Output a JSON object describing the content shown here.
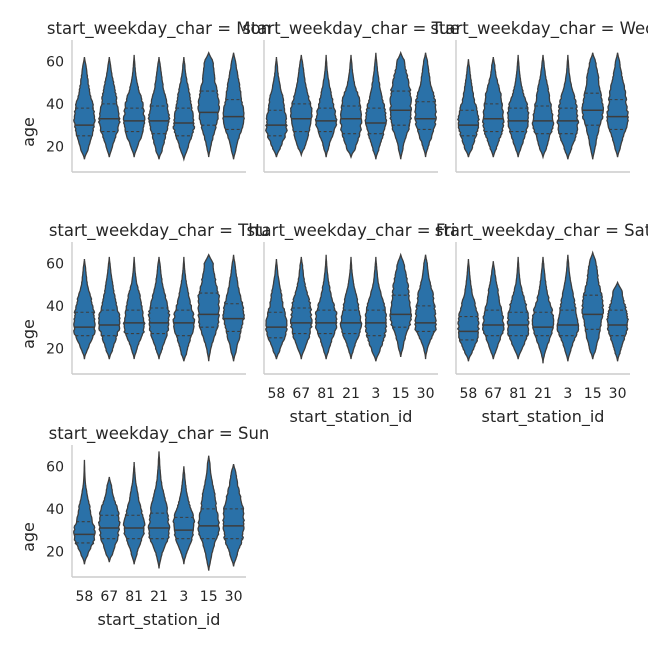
{
  "chart_data": {
    "type": "violin",
    "facet_variable": "start_weekday_char",
    "facet_title_prefix": "start_weekday_char = ",
    "xlabel": "start_station_id",
    "ylabel": "age",
    "categories": [
      "58",
      "67",
      "81",
      "21",
      "3",
      "15",
      "30"
    ],
    "yticks": [
      20,
      40,
      60
    ],
    "ylim": [
      8,
      70
    ],
    "inner": "quartile",
    "color": "#2a71a8",
    "edge_color": "#3d3d3d",
    "panels": [
      {
        "facet": "Mon",
        "quartiles": [
          [
            25,
            30,
            38
          ],
          [
            27,
            33,
            40
          ],
          [
            27,
            32,
            38
          ],
          [
            26,
            32,
            39
          ],
          [
            25,
            31,
            38
          ],
          [
            30,
            36,
            46
          ],
          [
            28,
            34,
            42
          ]
        ],
        "range": [
          [
            14,
            62
          ],
          [
            15,
            62
          ],
          [
            15,
            63
          ],
          [
            14,
            62
          ],
          [
            14,
            62
          ],
          [
            15,
            64
          ],
          [
            14,
            64
          ]
        ]
      },
      {
        "facet": "Tue",
        "quartiles": [
          [
            25,
            30,
            37
          ],
          [
            27,
            33,
            40
          ],
          [
            27,
            32,
            38
          ],
          [
            26,
            33,
            39
          ],
          [
            26,
            31,
            38
          ],
          [
            30,
            37,
            46
          ],
          [
            28,
            33,
            41
          ]
        ],
        "range": [
          [
            15,
            62
          ],
          [
            16,
            63
          ],
          [
            15,
            63
          ],
          [
            15,
            63
          ],
          [
            14,
            64
          ],
          [
            14,
            64
          ],
          [
            15,
            64
          ]
        ]
      },
      {
        "facet": "Wed",
        "quartiles": [
          [
            25,
            30,
            37
          ],
          [
            27,
            33,
            40
          ],
          [
            27,
            32,
            38
          ],
          [
            26,
            32,
            39
          ],
          [
            26,
            32,
            38
          ],
          [
            30,
            37,
            45
          ],
          [
            28,
            34,
            42
          ]
        ],
        "range": [
          [
            15,
            61
          ],
          [
            15,
            62
          ],
          [
            15,
            63
          ],
          [
            15,
            63
          ],
          [
            14,
            63
          ],
          [
            14,
            64
          ],
          [
            15,
            64
          ]
        ]
      },
      {
        "facet": "Thu",
        "quartiles": [
          [
            26,
            30,
            37
          ],
          [
            26,
            31,
            38
          ],
          [
            27,
            32,
            38
          ],
          [
            27,
            32,
            39
          ],
          [
            26,
            32,
            38
          ],
          [
            30,
            36,
            46
          ],
          [
            28,
            34,
            41
          ]
        ],
        "range": [
          [
            15,
            62
          ],
          [
            15,
            63
          ],
          [
            15,
            63
          ],
          [
            15,
            63
          ],
          [
            14,
            63
          ],
          [
            14,
            64
          ],
          [
            14,
            64
          ]
        ]
      },
      {
        "facet": "Fri",
        "quartiles": [
          [
            25,
            30,
            37
          ],
          [
            27,
            32,
            39
          ],
          [
            27,
            32,
            38
          ],
          [
            27,
            32,
            38
          ],
          [
            26,
            32,
            38
          ],
          [
            30,
            36,
            45
          ],
          [
            28,
            32,
            40
          ]
        ],
        "range": [
          [
            15,
            62
          ],
          [
            15,
            63
          ],
          [
            15,
            64
          ],
          [
            15,
            63
          ],
          [
            14,
            63
          ],
          [
            16,
            64
          ],
          [
            15,
            64
          ]
        ]
      },
      {
        "facet": "Sat",
        "quartiles": [
          [
            24,
            28,
            35
          ],
          [
            26,
            31,
            38
          ],
          [
            26,
            31,
            37
          ],
          [
            26,
            30,
            37
          ],
          [
            26,
            31,
            38
          ],
          [
            29,
            36,
            45
          ],
          [
            26,
            31,
            38
          ]
        ],
        "range": [
          [
            14,
            62
          ],
          [
            15,
            61
          ],
          [
            15,
            63
          ],
          [
            13,
            63
          ],
          [
            14,
            64
          ],
          [
            15,
            65
          ],
          [
            14,
            51
          ]
        ]
      },
      {
        "facet": "Sun",
        "quartiles": [
          [
            24,
            28,
            34
          ],
          [
            26,
            31,
            37
          ],
          [
            26,
            31,
            37
          ],
          [
            26,
            31,
            38
          ],
          [
            26,
            30,
            36
          ],
          [
            26,
            32,
            40
          ],
          [
            26,
            32,
            40
          ]
        ],
        "range": [
          [
            14,
            63
          ],
          [
            15,
            55
          ],
          [
            14,
            62
          ],
          [
            12,
            67
          ],
          [
            14,
            60
          ],
          [
            11,
            65
          ],
          [
            13,
            61
          ]
        ]
      }
    ]
  }
}
